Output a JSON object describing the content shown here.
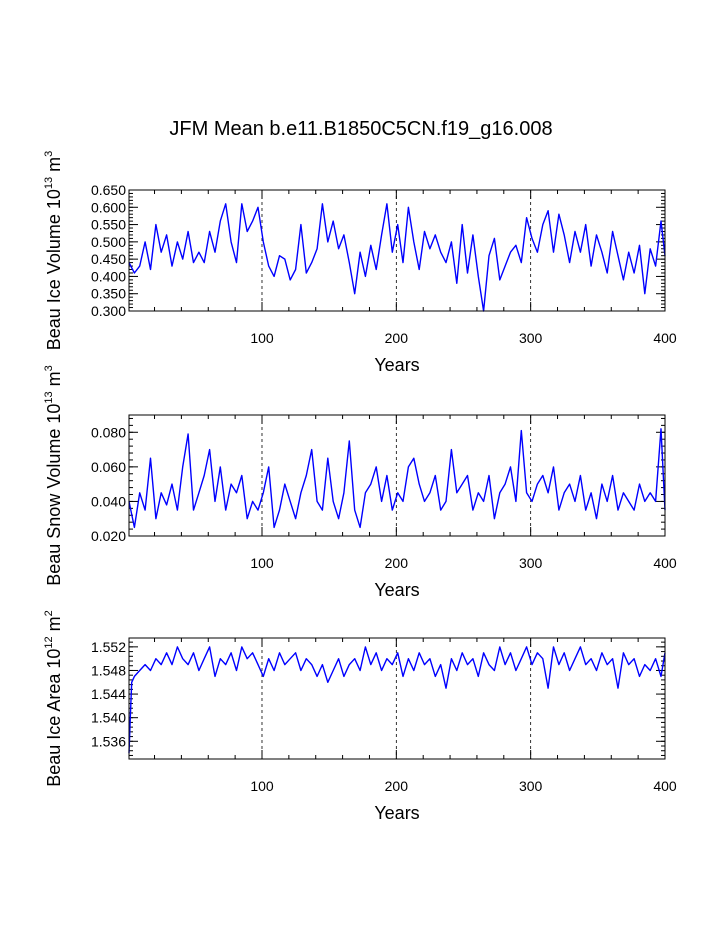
{
  "title": "JFM Mean b.e11.B1850C5CN.f19_g16.008",
  "colors": {
    "line": "#0000ff",
    "axis": "#000000",
    "grid": "#000000"
  },
  "chart_data": [
    {
      "type": "line",
      "name": "beau-ice-volume",
      "title": "JFM Mean b.e11.B1850C5CN.f19_g16.008",
      "xlabel": "Years",
      "ylabel": {
        "prefix": "Beau Ice Volume 10",
        "exp": "13",
        "mid": " m",
        "exp2": "3"
      },
      "xlim": [
        1,
        400
      ],
      "ylim": [
        0.3,
        0.65
      ],
      "xticks": [
        100,
        200,
        300,
        400
      ],
      "xtick_labels": [
        "100",
        "200",
        "300",
        "400"
      ],
      "yticks": [
        0.3,
        0.35,
        0.4,
        0.45,
        0.5,
        0.55,
        0.6,
        0.65
      ],
      "ytick_labels": [
        "0.300",
        "0.350",
        "0.400",
        "0.450",
        "0.500",
        "0.550",
        "0.600",
        "0.650"
      ],
      "gridlines_x": [
        100,
        200,
        300
      ],
      "series": [
        {
          "name": "Beau Ice Volume",
          "x": [
            1,
            5,
            9,
            13,
            17,
            21,
            25,
            29,
            33,
            37,
            41,
            45,
            49,
            53,
            57,
            61,
            65,
            69,
            73,
            77,
            81,
            85,
            89,
            93,
            97,
            101,
            105,
            109,
            113,
            117,
            121,
            125,
            129,
            133,
            137,
            141,
            145,
            149,
            153,
            157,
            161,
            165,
            169,
            173,
            177,
            181,
            185,
            189,
            193,
            197,
            201,
            205,
            209,
            213,
            217,
            221,
            225,
            229,
            233,
            237,
            241,
            245,
            249,
            253,
            257,
            261,
            265,
            269,
            273,
            277,
            281,
            285,
            289,
            293,
            297,
            301,
            305,
            309,
            313,
            317,
            321,
            325,
            329,
            333,
            337,
            341,
            345,
            349,
            353,
            357,
            361,
            365,
            369,
            373,
            377,
            381,
            385,
            389,
            393,
            397,
            400
          ],
          "values": [
            0.44,
            0.41,
            0.43,
            0.5,
            0.42,
            0.55,
            0.47,
            0.52,
            0.43,
            0.5,
            0.45,
            0.53,
            0.44,
            0.47,
            0.44,
            0.53,
            0.47,
            0.56,
            0.61,
            0.5,
            0.44,
            0.61,
            0.53,
            0.56,
            0.6,
            0.5,
            0.43,
            0.4,
            0.46,
            0.45,
            0.39,
            0.42,
            0.55,
            0.41,
            0.44,
            0.48,
            0.61,
            0.5,
            0.56,
            0.48,
            0.52,
            0.44,
            0.35,
            0.47,
            0.4,
            0.49,
            0.42,
            0.52,
            0.61,
            0.47,
            0.55,
            0.44,
            0.6,
            0.5,
            0.42,
            0.53,
            0.48,
            0.52,
            0.47,
            0.44,
            0.5,
            0.38,
            0.55,
            0.41,
            0.52,
            0.4,
            0.3,
            0.46,
            0.51,
            0.39,
            0.43,
            0.47,
            0.49,
            0.44,
            0.57,
            0.51,
            0.47,
            0.55,
            0.59,
            0.47,
            0.58,
            0.52,
            0.44,
            0.53,
            0.47,
            0.55,
            0.43,
            0.52,
            0.47,
            0.41,
            0.53,
            0.46,
            0.39,
            0.47,
            0.41,
            0.49,
            0.35,
            0.48,
            0.43,
            0.56,
            0.46
          ]
        }
      ]
    },
    {
      "type": "line",
      "name": "beau-snow-volume",
      "xlabel": "Years",
      "ylabel": {
        "prefix": "Beau Snow Volume 10",
        "exp": "13",
        "mid": " m",
        "exp2": "3"
      },
      "xlim": [
        1,
        400
      ],
      "ylim": [
        0.02,
        0.09
      ],
      "xticks": [
        100,
        200,
        300,
        400
      ],
      "xtick_labels": [
        "100",
        "200",
        "300",
        "400"
      ],
      "yticks": [
        0.02,
        0.04,
        0.06,
        0.08
      ],
      "ytick_labels": [
        "0.020",
        "0.040",
        "0.060",
        "0.080"
      ],
      "gridlines_x": [
        100,
        200,
        300
      ],
      "series": [
        {
          "name": "Beau Snow Volume",
          "x": [
            1,
            5,
            9,
            13,
            17,
            21,
            25,
            29,
            33,
            37,
            41,
            45,
            49,
            53,
            57,
            61,
            65,
            69,
            73,
            77,
            81,
            85,
            89,
            93,
            97,
            101,
            105,
            109,
            113,
            117,
            121,
            125,
            129,
            133,
            137,
            141,
            145,
            149,
            153,
            157,
            161,
            165,
            169,
            173,
            177,
            181,
            185,
            189,
            193,
            197,
            201,
            205,
            209,
            213,
            217,
            221,
            225,
            229,
            233,
            237,
            241,
            245,
            249,
            253,
            257,
            261,
            265,
            269,
            273,
            277,
            281,
            285,
            289,
            293,
            297,
            301,
            305,
            309,
            313,
            317,
            321,
            325,
            329,
            333,
            337,
            341,
            345,
            349,
            353,
            357,
            361,
            365,
            369,
            373,
            377,
            381,
            385,
            389,
            393,
            397,
            400
          ],
          "values": [
            0.04,
            0.025,
            0.045,
            0.035,
            0.065,
            0.03,
            0.045,
            0.038,
            0.05,
            0.035,
            0.06,
            0.079,
            0.035,
            0.045,
            0.055,
            0.07,
            0.04,
            0.06,
            0.035,
            0.05,
            0.045,
            0.055,
            0.03,
            0.04,
            0.035,
            0.045,
            0.06,
            0.025,
            0.035,
            0.05,
            0.04,
            0.03,
            0.045,
            0.055,
            0.07,
            0.04,
            0.035,
            0.065,
            0.04,
            0.03,
            0.045,
            0.075,
            0.035,
            0.025,
            0.045,
            0.05,
            0.06,
            0.04,
            0.055,
            0.035,
            0.045,
            0.04,
            0.06,
            0.065,
            0.05,
            0.04,
            0.045,
            0.055,
            0.035,
            0.04,
            0.07,
            0.045,
            0.05,
            0.055,
            0.035,
            0.045,
            0.04,
            0.055,
            0.03,
            0.045,
            0.05,
            0.06,
            0.04,
            0.081,
            0.045,
            0.04,
            0.05,
            0.055,
            0.045,
            0.06,
            0.035,
            0.045,
            0.05,
            0.04,
            0.055,
            0.035,
            0.045,
            0.03,
            0.05,
            0.04,
            0.055,
            0.035,
            0.045,
            0.04,
            0.035,
            0.05,
            0.04,
            0.045,
            0.04,
            0.082,
            0.035
          ]
        }
      ]
    },
    {
      "type": "line",
      "name": "beau-ice-area",
      "xlabel": "Years",
      "ylabel": {
        "prefix": "Beau Ice Area 10",
        "exp": "12",
        "mid": " m",
        "exp2": "2"
      },
      "xlim": [
        1,
        400
      ],
      "ylim": [
        1.533,
        1.5535
      ],
      "xticks": [
        100,
        200,
        300,
        400
      ],
      "xtick_labels": [
        "100",
        "200",
        "300",
        "400"
      ],
      "yticks": [
        1.536,
        1.54,
        1.544,
        1.548,
        1.552
      ],
      "ytick_labels": [
        "1.536",
        "1.540",
        "1.544",
        "1.548",
        "1.552"
      ],
      "gridlines_x": [
        100,
        200,
        300
      ],
      "series": [
        {
          "name": "Beau Ice Area",
          "x": [
            1,
            2,
            3,
            5,
            9,
            13,
            17,
            21,
            25,
            29,
            33,
            37,
            41,
            45,
            49,
            53,
            57,
            61,
            65,
            69,
            73,
            77,
            81,
            85,
            89,
            93,
            97,
            101,
            105,
            109,
            113,
            117,
            121,
            125,
            129,
            133,
            137,
            141,
            145,
            149,
            153,
            157,
            161,
            165,
            169,
            173,
            177,
            181,
            185,
            189,
            193,
            197,
            201,
            205,
            209,
            213,
            217,
            221,
            225,
            229,
            233,
            237,
            241,
            245,
            249,
            253,
            257,
            261,
            265,
            269,
            273,
            277,
            281,
            285,
            289,
            293,
            297,
            301,
            305,
            309,
            313,
            317,
            321,
            325,
            329,
            333,
            337,
            341,
            345,
            349,
            353,
            357,
            361,
            365,
            369,
            373,
            377,
            381,
            385,
            389,
            393,
            397,
            400
          ],
          "values": [
            1.534,
            1.54,
            1.546,
            1.547,
            1.548,
            1.549,
            1.548,
            1.55,
            1.549,
            1.551,
            1.549,
            1.552,
            1.55,
            1.549,
            1.551,
            1.548,
            1.55,
            1.552,
            1.547,
            1.55,
            1.549,
            1.551,
            1.548,
            1.552,
            1.55,
            1.551,
            1.549,
            1.547,
            1.55,
            1.548,
            1.551,
            1.549,
            1.55,
            1.551,
            1.548,
            1.55,
            1.549,
            1.547,
            1.549,
            1.546,
            1.548,
            1.55,
            1.547,
            1.549,
            1.55,
            1.548,
            1.552,
            1.549,
            1.551,
            1.548,
            1.55,
            1.549,
            1.551,
            1.547,
            1.55,
            1.548,
            1.551,
            1.549,
            1.55,
            1.547,
            1.549,
            1.545,
            1.55,
            1.548,
            1.551,
            1.549,
            1.55,
            1.547,
            1.551,
            1.549,
            1.548,
            1.552,
            1.549,
            1.551,
            1.548,
            1.55,
            1.552,
            1.549,
            1.551,
            1.55,
            1.545,
            1.552,
            1.549,
            1.551,
            1.548,
            1.55,
            1.552,
            1.549,
            1.55,
            1.548,
            1.551,
            1.549,
            1.55,
            1.545,
            1.551,
            1.549,
            1.55,
            1.547,
            1.549,
            1.548,
            1.55,
            1.547,
            1.551
          ]
        }
      ]
    }
  ]
}
